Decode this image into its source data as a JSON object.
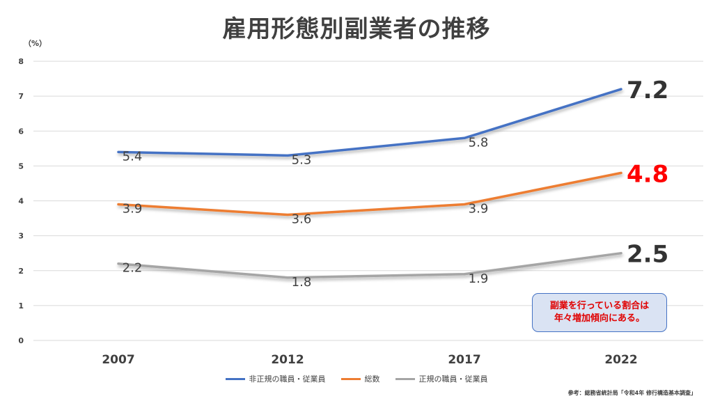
{
  "title": "雇用形態別副業者の推移",
  "chart_data": {
    "type": "line",
    "title": "雇用形態別副業者の推移",
    "unit_label": "（%）",
    "categories": [
      "2007",
      "2012",
      "2017",
      "2022"
    ],
    "ylim": [
      0,
      8
    ],
    "yticks": [
      "0",
      "1",
      "2",
      "3",
      "4",
      "5",
      "6",
      "7",
      "8"
    ],
    "grid": true,
    "legend_position": "bottom",
    "series": [
      {
        "name": "非正規の職員・従業員",
        "values": [
          5.4,
          5.3,
          5.8,
          7.2
        ],
        "labels": [
          "5.4",
          "5.3",
          "5.8",
          "7.2"
        ],
        "color": "#4472c4",
        "last_label_color": "#333333"
      },
      {
        "name": "総数",
        "values": [
          3.9,
          3.6,
          3.9,
          4.8
        ],
        "labels": [
          "3.9",
          "3.6",
          "3.9",
          "4.8"
        ],
        "color": "#ed7d31",
        "last_label_color": "#ff0000"
      },
      {
        "name": "正規の職員・従業員",
        "values": [
          2.2,
          1.8,
          1.9,
          2.5
        ],
        "labels": [
          "2.2",
          "1.8",
          "1.9",
          "2.5"
        ],
        "color": "#a5a5a5",
        "last_label_color": "#333333"
      }
    ]
  },
  "callout": {
    "line1": "副業を行っている割合は",
    "line2": "年々増加傾向にある。"
  },
  "source": "参考：総務省統計局「令和4年 修行構造基本調査」"
}
